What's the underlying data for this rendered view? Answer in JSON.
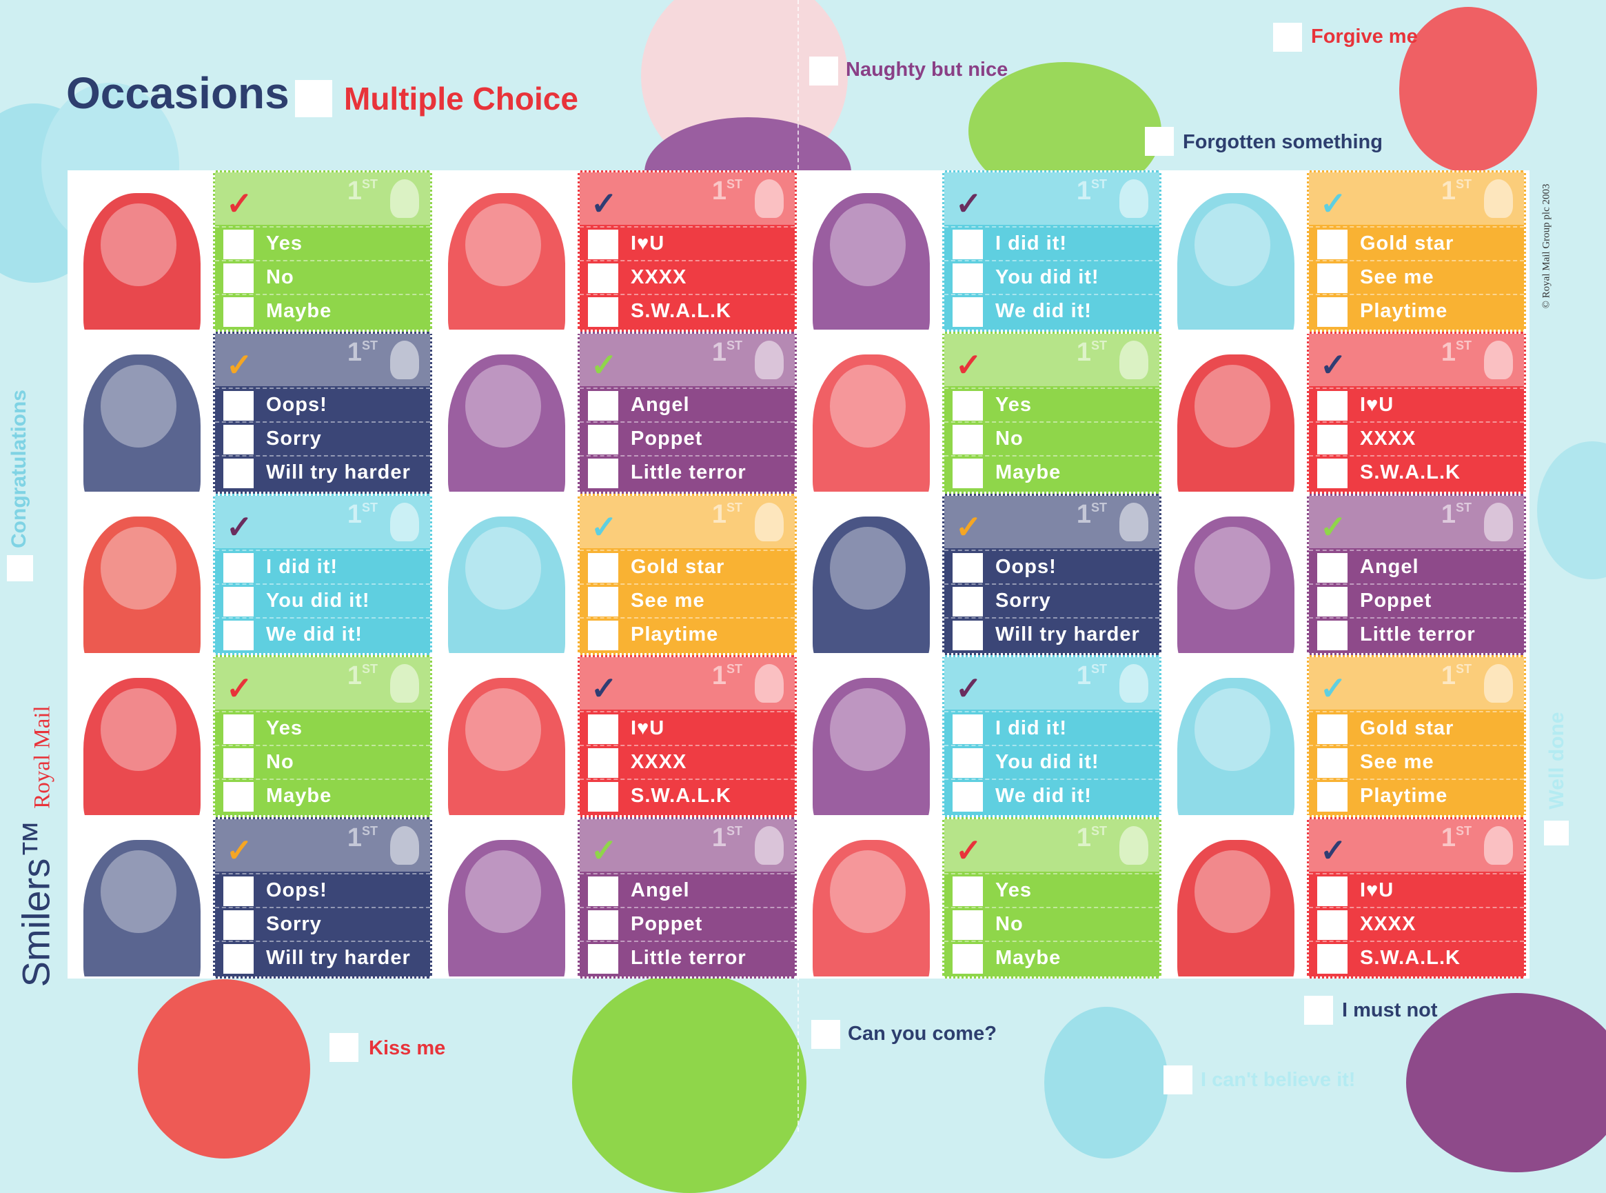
{
  "header": {
    "title": "Occasions",
    "subtitle": "Multiple Choice"
  },
  "margin_labels": [
    {
      "text": "Naughty but nice",
      "color": "#8a3f86"
    },
    {
      "text": "Forgive me",
      "color": "#e8333a"
    },
    {
      "text": "Forgotten something",
      "color": "#2d3e6e"
    },
    {
      "text": "Kiss me",
      "color": "#e8333a"
    },
    {
      "text": "Can you come?",
      "color": "#2d3e6e"
    },
    {
      "text": "I must not",
      "color": "#2d3e6e"
    },
    {
      "text": "I can't believe it!",
      "color": "#b4ebf2"
    }
  ],
  "side_labels": {
    "congratulations": "Congratulations",
    "brand": "Smilers™",
    "royal_mail": "Royal Mail",
    "well_done": "Well done",
    "copyright": "© Royal Mail Group plc 2003"
  },
  "stamps": [
    [
      {
        "color": "#8fd64a",
        "check_color": "#e8333a",
        "denomination": "1",
        "suffix": "ST",
        "options": [
          "Yes",
          "No",
          "Maybe"
        ]
      },
      {
        "color": "#ef3c43",
        "check_color": "#2f3d73",
        "denomination": "1",
        "suffix": "ST",
        "options": [
          "I♥U",
          "XXXX",
          "S.W.A.L.K"
        ]
      },
      {
        "color": "#5fcfe0",
        "check_color": "#6b2d5e",
        "denomination": "1",
        "suffix": "ST",
        "options": [
          "I did it!",
          "You did it!",
          "We did it!"
        ]
      },
      {
        "color": "#f9b233",
        "check_color": "#5fcfe0",
        "denomination": "1",
        "suffix": "ST",
        "options": [
          "Gold star",
          "See me",
          "Playtime"
        ]
      }
    ],
    [
      {
        "color": "#3b4677",
        "check_color": "#f5a623",
        "denomination": "1",
        "suffix": "ST",
        "options": [
          "Oops!",
          "Sorry",
          "Will try harder"
        ]
      },
      {
        "color": "#8e4a8a",
        "check_color": "#8fd64a",
        "denomination": "1",
        "suffix": "ST",
        "options": [
          "Angel",
          "Poppet",
          "Little terror"
        ]
      },
      {
        "color": "#8fd64a",
        "check_color": "#e8333a",
        "denomination": "1",
        "suffix": "ST",
        "options": [
          "Yes",
          "No",
          "Maybe"
        ]
      },
      {
        "color": "#ef3c43",
        "check_color": "#2f3d73",
        "denomination": "1",
        "suffix": "ST",
        "options": [
          "I♥U",
          "XXXX",
          "S.W.A.L.K"
        ]
      }
    ],
    [
      {
        "color": "#5fcfe0",
        "check_color": "#6b2d5e",
        "denomination": "1",
        "suffix": "ST",
        "options": [
          "I did it!",
          "You did it!",
          "We did it!"
        ]
      },
      {
        "color": "#f9b233",
        "check_color": "#5fcfe0",
        "denomination": "1",
        "suffix": "ST",
        "options": [
          "Gold star",
          "See me",
          "Playtime"
        ]
      },
      {
        "color": "#3b4677",
        "check_color": "#f5a623",
        "denomination": "1",
        "suffix": "ST",
        "options": [
          "Oops!",
          "Sorry",
          "Will try harder"
        ]
      },
      {
        "color": "#8e4a8a",
        "check_color": "#8fd64a",
        "denomination": "1",
        "suffix": "ST",
        "options": [
          "Angel",
          "Poppet",
          "Little terror"
        ]
      }
    ],
    [
      {
        "color": "#8fd64a",
        "check_color": "#e8333a",
        "denomination": "1",
        "suffix": "ST",
        "options": [
          "Yes",
          "No",
          "Maybe"
        ]
      },
      {
        "color": "#ef3c43",
        "check_color": "#2f3d73",
        "denomination": "1",
        "suffix": "ST",
        "options": [
          "I♥U",
          "XXXX",
          "S.W.A.L.K"
        ]
      },
      {
        "color": "#5fcfe0",
        "check_color": "#6b2d5e",
        "denomination": "1",
        "suffix": "ST",
        "options": [
          "I did it!",
          "You did it!",
          "We did it!"
        ]
      },
      {
        "color": "#f9b233",
        "check_color": "#5fcfe0",
        "denomination": "1",
        "suffix": "ST",
        "options": [
          "Gold star",
          "See me",
          "Playtime"
        ]
      }
    ],
    [
      {
        "color": "#3b4677",
        "check_color": "#f5a623",
        "denomination": "1",
        "suffix": "ST",
        "options": [
          "Oops!",
          "Sorry",
          "Will try harder"
        ]
      },
      {
        "color": "#8e4a8a",
        "check_color": "#8fd64a",
        "denomination": "1",
        "suffix": "ST",
        "options": [
          "Angel",
          "Poppet",
          "Little terror"
        ]
      },
      {
        "color": "#8fd64a",
        "check_color": "#e8333a",
        "denomination": "1",
        "suffix": "ST",
        "options": [
          "Yes",
          "No",
          "Maybe"
        ]
      },
      {
        "color": "#ef3c43",
        "check_color": "#2f3d73",
        "denomination": "1",
        "suffix": "ST",
        "options": [
          "I♥U",
          "XXXX",
          "S.W.A.L.K"
        ]
      }
    ]
  ]
}
